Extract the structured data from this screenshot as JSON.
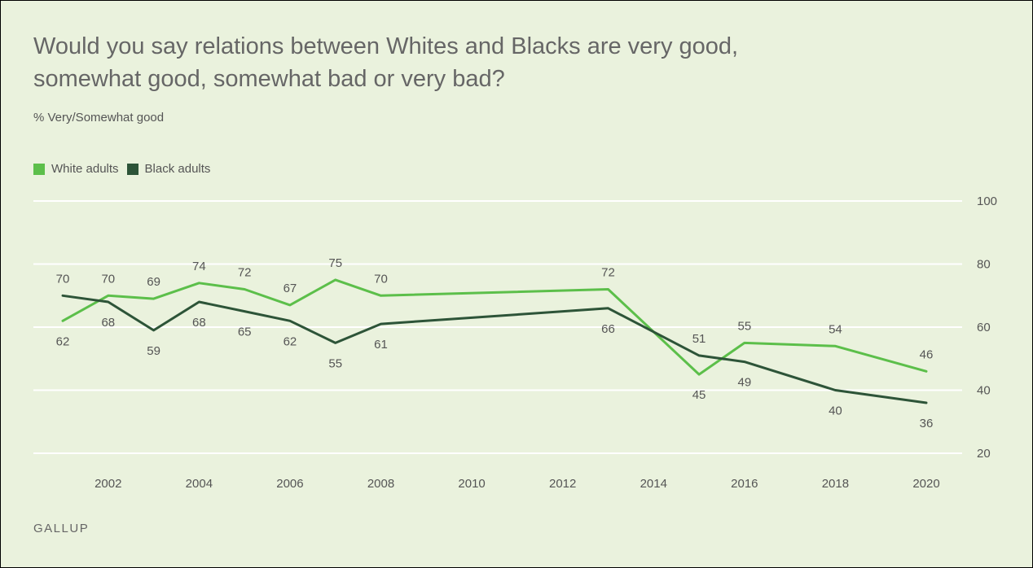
{
  "title": "Would you say relations between Whites and Blacks are very good, somewhat good, somewhat bad or very bad?",
  "subtitle": "% Very/Somewhat good",
  "source": "GALLUP",
  "colors": {
    "background": "#eaf2dd",
    "white_adults": "#5cbf4a",
    "black_adults": "#2d5438",
    "grid": "#ffffff",
    "text": "#555555"
  },
  "legend": [
    {
      "label": "White adults",
      "color": "#5cbf4a"
    },
    {
      "label": "Black adults",
      "color": "#2d5438"
    }
  ],
  "chart_data": {
    "type": "line",
    "title": "Would you say relations between Whites and Blacks are very good, somewhat good, somewhat bad or very bad?",
    "ylabel": "% Very/Somewhat good",
    "xlabel": "",
    "ylim": [
      20,
      100
    ],
    "yticks": [
      20,
      40,
      60,
      80,
      100
    ],
    "xticks": [
      2002,
      2004,
      2006,
      2008,
      2010,
      2012,
      2014,
      2016,
      2018,
      2020
    ],
    "x_range": [
      2001,
      2020
    ],
    "grid": true,
    "y_axis_side": "right",
    "legend_position": "top-left",
    "series": [
      {
        "name": "White adults",
        "color": "#5cbf4a",
        "x": [
          2001,
          2002,
          2003,
          2004,
          2005,
          2006,
          2007,
          2008,
          2013,
          2015,
          2016,
          2018,
          2020
        ],
        "values": [
          62,
          70,
          69,
          74,
          72,
          67,
          75,
          70,
          72,
          45,
          55,
          54,
          46
        ],
        "label_pos": [
          "below",
          "above",
          "above",
          "above",
          "above",
          "above",
          "above",
          "above",
          "above",
          "below",
          "above",
          "above",
          "above"
        ]
      },
      {
        "name": "Black adults",
        "color": "#2d5438",
        "x": [
          2001,
          2002,
          2003,
          2004,
          2005,
          2006,
          2007,
          2008,
          2013,
          2015,
          2016,
          2018,
          2020
        ],
        "values": [
          70,
          68,
          59,
          68,
          65,
          62,
          55,
          61,
          66,
          51,
          49,
          40,
          36
        ],
        "label_pos": [
          "above",
          "below",
          "below",
          "below",
          "below",
          "below",
          "below",
          "below",
          "below",
          "above",
          "below",
          "below",
          "below"
        ]
      }
    ]
  }
}
